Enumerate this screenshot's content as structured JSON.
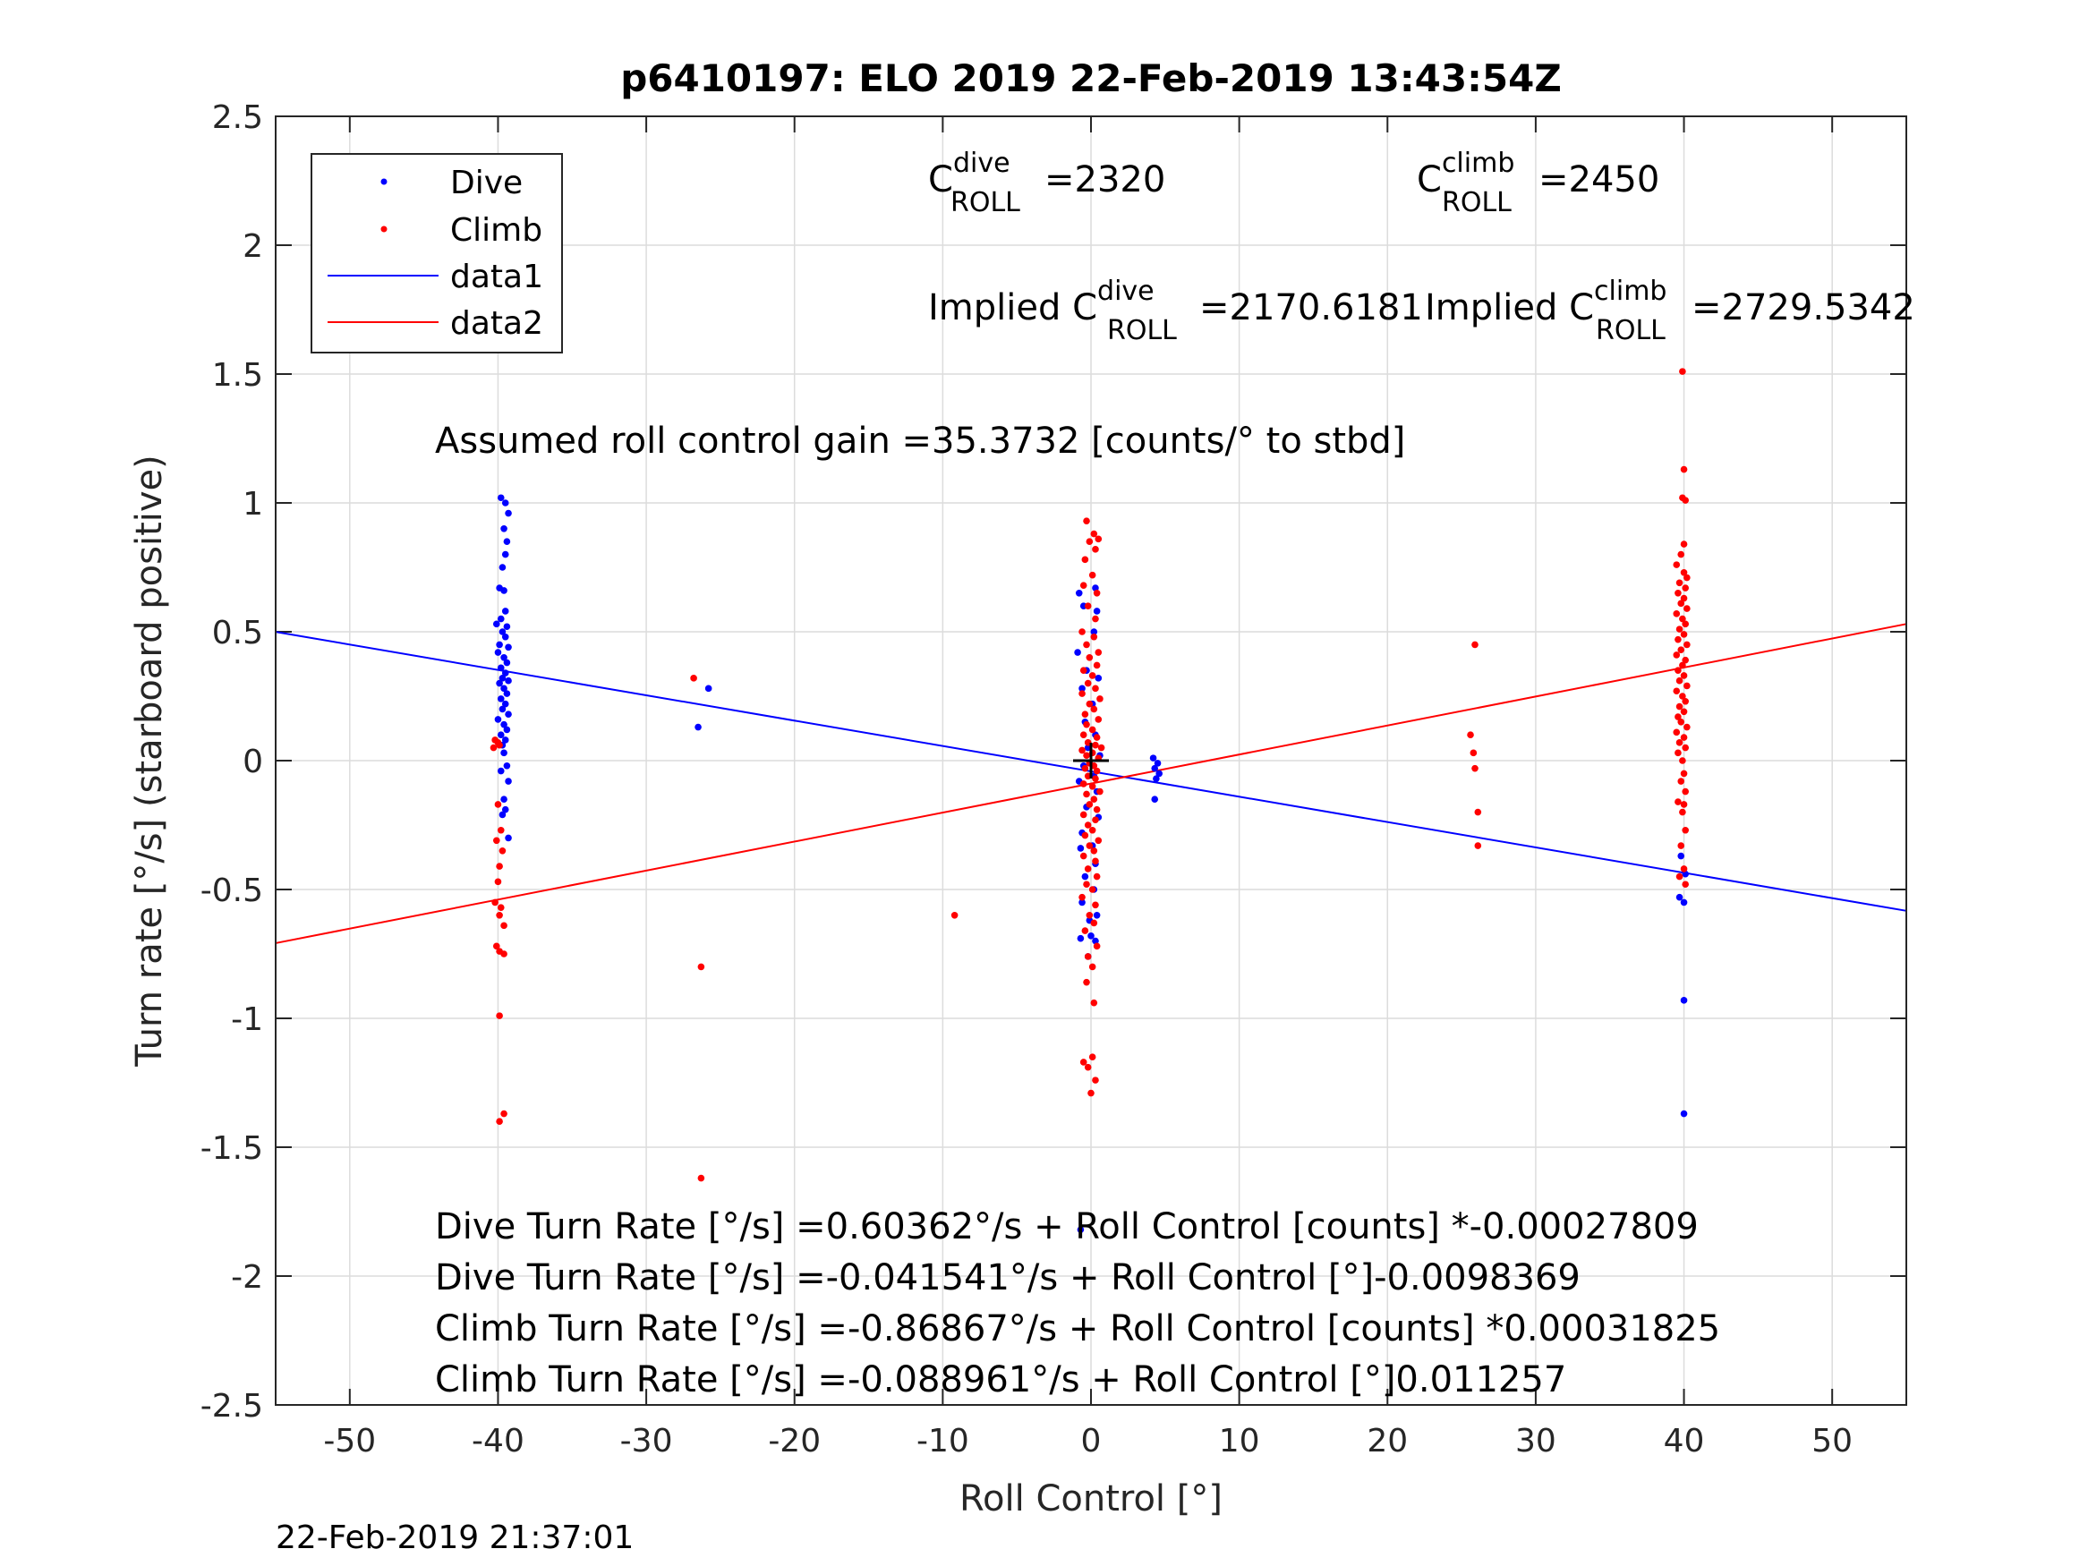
{
  "chart_data": {
    "type": "scatter",
    "title": "p6410197: ELO 2019 22-Feb-2019 13:43:54Z",
    "xlabel": "Roll Control [°]",
    "ylabel": "Turn rate [°/s] (starboard positive)",
    "xlim": [
      -55,
      55
    ],
    "ylim": [
      -2.5,
      2.5
    ],
    "xticks": [
      "-50",
      "-40",
      "-30",
      "-20",
      "-10",
      "0",
      "10",
      "20",
      "30",
      "40",
      "50"
    ],
    "yticks": [
      "2.5",
      "2",
      "1.5",
      "1",
      "0.5",
      "0",
      "-0.5",
      "-1",
      "-1.5",
      "-2",
      "-2.5"
    ],
    "grid": true,
    "legend_position": "top-left",
    "colors": {
      "dive": "#0000ff",
      "climb": "#ff0000",
      "axis": "#262626",
      "grid": "#dcdcdc"
    },
    "series": [
      {
        "name": "Dive",
        "kind": "points",
        "color": "#0000ff",
        "points": [
          [
            -39.8,
            1.02
          ],
          [
            -39.5,
            1.0
          ],
          [
            -39.3,
            0.96
          ],
          [
            -39.6,
            0.9
          ],
          [
            -39.4,
            0.85
          ],
          [
            -39.5,
            0.8
          ],
          [
            -39.7,
            0.75
          ],
          [
            -39.9,
            0.67
          ],
          [
            -39.6,
            0.66
          ],
          [
            -39.5,
            0.58
          ],
          [
            -39.8,
            0.55
          ],
          [
            -39.4,
            0.52
          ],
          [
            -40.1,
            0.53
          ],
          [
            -39.7,
            0.5
          ],
          [
            -39.5,
            0.48
          ],
          [
            -39.9,
            0.45
          ],
          [
            -39.3,
            0.44
          ],
          [
            -40.0,
            0.42
          ],
          [
            -39.6,
            0.4
          ],
          [
            -39.4,
            0.38
          ],
          [
            -39.8,
            0.36
          ],
          [
            -39.5,
            0.34
          ],
          [
            -39.7,
            0.32
          ],
          [
            -39.3,
            0.31
          ],
          [
            -39.9,
            0.3
          ],
          [
            -39.6,
            0.28
          ],
          [
            -39.4,
            0.26
          ],
          [
            -39.8,
            0.24
          ],
          [
            -39.5,
            0.22
          ],
          [
            -39.7,
            0.2
          ],
          [
            -39.3,
            0.18
          ],
          [
            -40.0,
            0.16
          ],
          [
            -39.6,
            0.14
          ],
          [
            -39.4,
            0.12
          ],
          [
            -39.8,
            0.1
          ],
          [
            -39.5,
            0.08
          ],
          [
            -39.7,
            0.06
          ],
          [
            -39.6,
            0.03
          ],
          [
            -39.4,
            -0.02
          ],
          [
            -39.8,
            -0.04
          ],
          [
            -39.3,
            -0.08
          ],
          [
            -39.6,
            -0.15
          ],
          [
            -39.5,
            -0.19
          ],
          [
            -39.7,
            -0.21
          ],
          [
            -39.3,
            -0.3
          ],
          [
            -26.5,
            0.13
          ],
          [
            -25.8,
            0.28
          ],
          [
            -0.8,
            0.65
          ],
          [
            0.3,
            0.67
          ],
          [
            -0.5,
            0.6
          ],
          [
            0.4,
            0.58
          ],
          [
            -0.9,
            0.42
          ],
          [
            0.2,
            0.5
          ],
          [
            -0.3,
            0.35
          ],
          [
            0.5,
            0.32
          ],
          [
            -0.6,
            0.28
          ],
          [
            0.1,
            0.22
          ],
          [
            -0.4,
            0.15
          ],
          [
            0.3,
            0.1
          ],
          [
            -0.2,
            0.05
          ],
          [
            0.6,
            0.02
          ],
          [
            -0.5,
            -0.02
          ],
          [
            0.2,
            -0.06
          ],
          [
            -0.8,
            -0.08
          ],
          [
            0.4,
            -0.12
          ],
          [
            -0.3,
            -0.18
          ],
          [
            0.5,
            -0.22
          ],
          [
            -0.6,
            -0.28
          ],
          [
            0.1,
            -0.33
          ],
          [
            -0.7,
            -0.34
          ],
          [
            0.3,
            -0.4
          ],
          [
            -0.4,
            -0.45
          ],
          [
            0.2,
            -0.5
          ],
          [
            -0.6,
            -0.55
          ],
          [
            0.4,
            -0.6
          ],
          [
            -0.1,
            -0.62
          ],
          [
            0.0,
            -0.68
          ],
          [
            -0.7,
            -0.69
          ],
          [
            0.3,
            -0.7
          ],
          [
            -0.2,
            -0.76
          ],
          [
            -0.7,
            -1.82
          ],
          [
            4.2,
            0.01
          ],
          [
            4.5,
            -0.01
          ],
          [
            4.3,
            -0.03
          ],
          [
            4.6,
            -0.05
          ],
          [
            4.4,
            -0.07
          ],
          [
            4.3,
            -0.15
          ],
          [
            39.8,
            -0.37
          ],
          [
            40.1,
            -0.44
          ],
          [
            39.7,
            -0.53
          ],
          [
            40.0,
            -0.55
          ],
          [
            40.0,
            -0.93
          ],
          [
            40.0,
            -1.37
          ]
        ]
      },
      {
        "name": "Climb",
        "kind": "points",
        "color": "#ff0000",
        "points": [
          [
            -40.2,
            0.08
          ],
          [
            -40.0,
            0.07
          ],
          [
            -39.9,
            0.06
          ],
          [
            -40.3,
            0.05
          ],
          [
            -40.0,
            -0.17
          ],
          [
            -39.8,
            -0.27
          ],
          [
            -40.1,
            -0.31
          ],
          [
            -39.7,
            -0.35
          ],
          [
            -39.9,
            -0.41
          ],
          [
            -40.0,
            -0.47
          ],
          [
            -40.2,
            -0.55
          ],
          [
            -39.8,
            -0.57
          ],
          [
            -39.9,
            -0.6
          ],
          [
            -39.6,
            -0.64
          ],
          [
            -40.1,
            -0.72
          ],
          [
            -39.9,
            -0.74
          ],
          [
            -39.6,
            -0.75
          ],
          [
            -39.9,
            -0.99
          ],
          [
            -39.6,
            -1.37
          ],
          [
            -39.9,
            -1.4
          ],
          [
            -26.8,
            0.32
          ],
          [
            -26.3,
            -0.8
          ],
          [
            -26.3,
            -1.62
          ],
          [
            -9.2,
            -0.6
          ],
          [
            -0.3,
            0.93
          ],
          [
            0.2,
            0.88
          ],
          [
            0.5,
            0.86
          ],
          [
            -0.1,
            0.85
          ],
          [
            0.3,
            0.82
          ],
          [
            -0.4,
            0.78
          ],
          [
            0.1,
            0.72
          ],
          [
            -0.5,
            0.68
          ],
          [
            0.4,
            0.65
          ],
          [
            -0.2,
            0.6
          ],
          [
            0.3,
            0.55
          ],
          [
            -0.6,
            0.5
          ],
          [
            0.2,
            0.48
          ],
          [
            -0.3,
            0.45
          ],
          [
            0.5,
            0.42
          ],
          [
            -0.1,
            0.4
          ],
          [
            0.4,
            0.37
          ],
          [
            -0.5,
            0.35
          ],
          [
            0.1,
            0.33
          ],
          [
            -0.2,
            0.3
          ],
          [
            0.3,
            0.28
          ],
          [
            -0.6,
            0.26
          ],
          [
            0.6,
            0.24
          ],
          [
            -0.1,
            0.22
          ],
          [
            0.2,
            0.2
          ],
          [
            -0.4,
            0.18
          ],
          [
            0.5,
            0.16
          ],
          [
            -0.3,
            0.14
          ],
          [
            0.1,
            0.12
          ],
          [
            -0.5,
            0.1
          ],
          [
            0.4,
            0.09
          ],
          [
            -0.2,
            0.07
          ],
          [
            0.3,
            0.06
          ],
          [
            0.7,
            0.05
          ],
          [
            -0.6,
            0.04
          ],
          [
            0.1,
            0.03
          ],
          [
            -0.3,
            0.02
          ],
          [
            0.5,
            0.01
          ],
          [
            -0.1,
            -0.01
          ],
          [
            0.2,
            -0.02
          ],
          [
            -0.4,
            -0.03
          ],
          [
            0.4,
            -0.04
          ],
          [
            -0.2,
            -0.06
          ],
          [
            0.3,
            -0.07
          ],
          [
            -0.5,
            -0.09
          ],
          [
            0.1,
            -0.1
          ],
          [
            0.6,
            -0.12
          ],
          [
            -0.3,
            -0.13
          ],
          [
            0.2,
            -0.15
          ],
          [
            -0.1,
            -0.17
          ],
          [
            0.4,
            -0.19
          ],
          [
            -0.5,
            -0.21
          ],
          [
            0.3,
            -0.23
          ],
          [
            -0.2,
            -0.25
          ],
          [
            0.1,
            -0.27
          ],
          [
            -0.4,
            -0.29
          ],
          [
            0.5,
            -0.31
          ],
          [
            -0.1,
            -0.33
          ],
          [
            0.2,
            -0.35
          ],
          [
            -0.5,
            -0.37
          ],
          [
            0.3,
            -0.39
          ],
          [
            -0.2,
            -0.42
          ],
          [
            0.4,
            -0.45
          ],
          [
            -0.3,
            -0.48
          ],
          [
            0.1,
            -0.5
          ],
          [
            -0.6,
            -0.53
          ],
          [
            0.3,
            -0.56
          ],
          [
            -0.1,
            -0.6
          ],
          [
            0.2,
            -0.63
          ],
          [
            -0.4,
            -0.66
          ],
          [
            0.4,
            -0.72
          ],
          [
            -0.2,
            -0.76
          ],
          [
            0.1,
            -0.8
          ],
          [
            -0.3,
            -0.86
          ],
          [
            0.2,
            -0.94
          ],
          [
            -0.5,
            -1.17
          ],
          [
            0.1,
            -1.15
          ],
          [
            -0.2,
            -1.19
          ],
          [
            0.3,
            -1.24
          ],
          [
            0.0,
            -1.29
          ],
          [
            25.6,
            0.1
          ],
          [
            25.9,
            0.45
          ],
          [
            25.8,
            0.03
          ],
          [
            25.9,
            -0.03
          ],
          [
            26.1,
            -0.2
          ],
          [
            26.1,
            -0.33
          ],
          [
            39.9,
            1.51
          ],
          [
            40.0,
            1.13
          ],
          [
            39.9,
            1.02
          ],
          [
            40.1,
            1.01
          ],
          [
            40.0,
            0.84
          ],
          [
            39.8,
            0.8
          ],
          [
            40.0,
            0.73
          ],
          [
            39.5,
            0.76
          ],
          [
            40.2,
            0.71
          ],
          [
            39.7,
            0.69
          ],
          [
            40.1,
            0.67
          ],
          [
            39.6,
            0.65
          ],
          [
            40.0,
            0.63
          ],
          [
            39.8,
            0.61
          ],
          [
            40.2,
            0.59
          ],
          [
            39.5,
            0.57
          ],
          [
            39.9,
            0.55
          ],
          [
            40.1,
            0.53
          ],
          [
            39.7,
            0.51
          ],
          [
            40.0,
            0.49
          ],
          [
            39.6,
            0.47
          ],
          [
            40.2,
            0.45
          ],
          [
            39.8,
            0.43
          ],
          [
            39.5,
            0.41
          ],
          [
            40.1,
            0.39
          ],
          [
            39.9,
            0.37
          ],
          [
            39.6,
            0.35
          ],
          [
            40.0,
            0.33
          ],
          [
            39.7,
            0.31
          ],
          [
            40.2,
            0.29
          ],
          [
            39.5,
            0.27
          ],
          [
            39.9,
            0.25
          ],
          [
            40.1,
            0.23
          ],
          [
            39.7,
            0.21
          ],
          [
            40.0,
            0.19
          ],
          [
            39.6,
            0.17
          ],
          [
            39.8,
            0.15
          ],
          [
            40.2,
            0.13
          ],
          [
            39.5,
            0.11
          ],
          [
            40.0,
            0.09
          ],
          [
            39.7,
            0.07
          ],
          [
            40.1,
            0.05
          ],
          [
            39.6,
            0.03
          ],
          [
            39.9,
            0.0
          ],
          [
            40.0,
            -0.05
          ],
          [
            39.8,
            -0.08
          ],
          [
            40.1,
            -0.12
          ],
          [
            39.6,
            -0.16
          ],
          [
            40.0,
            -0.17
          ],
          [
            39.9,
            -0.2
          ],
          [
            40.1,
            -0.27
          ],
          [
            39.8,
            -0.33
          ],
          [
            40.0,
            -0.42
          ],
          [
            39.7,
            -0.45
          ],
          [
            40.1,
            -0.48
          ]
        ]
      },
      {
        "name": "data1",
        "kind": "line",
        "color": "#0000ff",
        "x": [
          -55,
          55
        ],
        "y": [
          0.4996,
          -0.5827
        ]
      },
      {
        "name": "data2",
        "kind": "line",
        "color": "#ff0000",
        "x": [
          -55,
          55
        ],
        "y": [
          -0.7081,
          0.5302
        ]
      }
    ],
    "marker": {
      "x": 0,
      "y": 0,
      "symbol": "+"
    },
    "annotations": {
      "c_dive": {
        "base": "C",
        "sup": "dive",
        "sub": "ROLL",
        "value": "=2320"
      },
      "c_climb": {
        "base": "C",
        "sup": "climb",
        "sub": "ROLL",
        "value": "=2450"
      },
      "implied_dive": {
        "prefix": "Implied C",
        "sup": "dive",
        "sub": "ROLL",
        "value": "=2170.6181"
      },
      "implied_climb": {
        "prefix": "Implied C",
        "sup": "climb",
        "sub": "ROLL",
        "value": "=2729.5342"
      },
      "gain": "Assumed roll control gain =35.3732 [counts/° to stbd]",
      "eq1": "Dive Turn Rate [°/s] =0.60362°/s + Roll Control [counts] *-0.00027809",
      "eq2": "Dive Turn Rate [°/s] =-0.041541°/s + Roll Control [°]-0.0098369",
      "eq3": "Climb Turn Rate [°/s] =-0.86867°/s + Roll Control [counts] *0.00031825",
      "eq4": "Climb Turn Rate [°/s] =-0.088961°/s + Roll Control [°]0.011257"
    },
    "timestamp": "22-Feb-2019 21:37:01"
  }
}
